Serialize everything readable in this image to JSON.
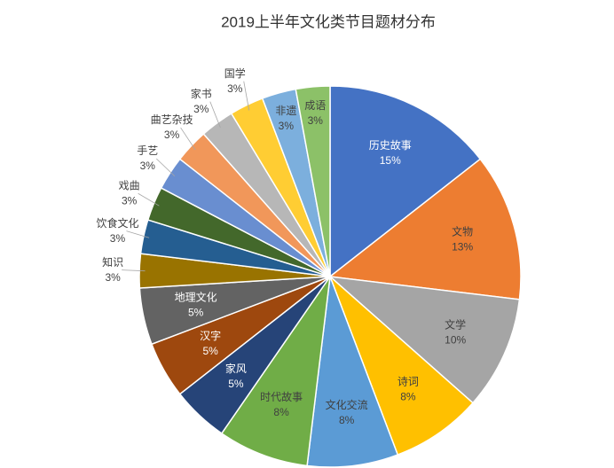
{
  "chart_data": {
    "type": "pie",
    "title": "2019上半年文化类节目题材分布",
    "categories": [
      "历史故事",
      "文物",
      "文学",
      "诗词",
      "文化交流",
      "时代故事",
      "家风",
      "汉字",
      "地理文化",
      "知识",
      "饮食文化",
      "戏曲",
      "手艺",
      "曲艺杂技",
      "家书",
      "国学",
      "非遗",
      "成语"
    ],
    "values": [
      15,
      13,
      10,
      8,
      8,
      8,
      5,
      5,
      5,
      3,
      3,
      3,
      3,
      3,
      3,
      3,
      3,
      3
    ],
    "value_labels": [
      "15%",
      "13%",
      "10%",
      "8%",
      "8%",
      "8%",
      "5%",
      "5%",
      "5%",
      "3%",
      "3%",
      "3%",
      "3%",
      "3%",
      "3%",
      "3%",
      "3%",
      "3%"
    ],
    "colors": [
      "#4472c4",
      "#ed7d31",
      "#a5a5a5",
      "#ffc000",
      "#5b9bd5",
      "#70ad47",
      "#264478",
      "#9e480e",
      "#636363",
      "#997300",
      "#255e91",
      "#43682b",
      "#698ed0",
      "#f1975a",
      "#b7b7b7",
      "#ffcd33",
      "#7cafdd",
      "#8cc168"
    ]
  }
}
